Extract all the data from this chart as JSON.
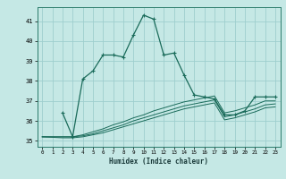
{
  "xlabel": "Humidex (Indice chaleur)",
  "xlim": [
    -0.5,
    23.5
  ],
  "ylim": [
    34.7,
    41.7
  ],
  "yticks": [
    35,
    36,
    37,
    38,
    39,
    40,
    41
  ],
  "xticks": [
    0,
    1,
    2,
    3,
    4,
    5,
    6,
    7,
    8,
    9,
    10,
    11,
    12,
    13,
    14,
    15,
    16,
    17,
    18,
    19,
    20,
    21,
    22,
    23
  ],
  "bg_color": "#c5e8e5",
  "grid_color": "#9ecece",
  "line_color": "#1a6b5a",
  "line1_x": [
    0,
    1,
    2,
    3,
    4,
    5,
    6,
    7,
    8,
    9,
    10,
    11,
    12,
    13,
    14,
    15,
    16,
    17,
    18,
    19,
    20,
    21,
    22,
    23
  ],
  "line1_y": [
    35.4,
    null,
    36.4,
    35.2,
    38.1,
    38.5,
    39.3,
    39.3,
    39.2,
    40.3,
    41.3,
    41.1,
    39.3,
    39.4,
    38.3,
    37.3,
    37.2,
    37.1,
    36.3,
    36.3,
    36.5,
    37.2,
    37.2,
    37.2
  ],
  "line2_x": [
    0,
    2,
    3,
    4,
    5,
    6,
    7,
    8,
    9,
    10,
    11,
    12,
    13,
    14,
    15,
    16,
    17,
    18,
    19,
    20,
    21,
    22,
    23
  ],
  "line2_y": [
    35.2,
    35.2,
    35.2,
    35.3,
    35.45,
    35.6,
    35.8,
    35.95,
    36.15,
    36.3,
    36.5,
    36.65,
    36.8,
    36.95,
    37.05,
    37.15,
    37.25,
    36.4,
    36.5,
    36.65,
    36.8,
    37.0,
    37.0
  ],
  "line3_x": [
    0,
    2,
    3,
    4,
    5,
    6,
    7,
    8,
    9,
    10,
    11,
    12,
    13,
    14,
    15,
    16,
    17,
    18,
    19,
    20,
    21,
    22,
    23
  ],
  "line3_y": [
    35.2,
    35.2,
    35.2,
    35.25,
    35.35,
    35.5,
    35.65,
    35.8,
    36.0,
    36.15,
    36.3,
    36.45,
    36.6,
    36.75,
    36.85,
    36.95,
    37.05,
    36.2,
    36.3,
    36.45,
    36.6,
    36.8,
    36.85
  ],
  "line4_x": [
    0,
    2,
    3,
    4,
    5,
    6,
    7,
    8,
    9,
    10,
    11,
    12,
    13,
    14,
    15,
    16,
    17,
    18,
    19,
    20,
    21,
    22,
    23
  ],
  "line4_y": [
    35.2,
    35.15,
    35.15,
    35.2,
    35.3,
    35.4,
    35.55,
    35.7,
    35.85,
    36.0,
    36.15,
    36.3,
    36.45,
    36.6,
    36.7,
    36.8,
    36.9,
    36.05,
    36.15,
    36.3,
    36.45,
    36.65,
    36.7
  ]
}
